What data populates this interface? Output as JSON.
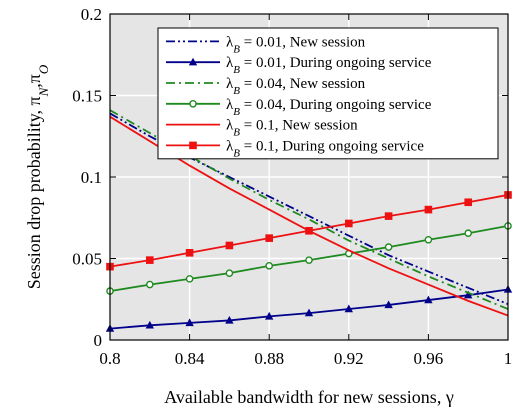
{
  "chart_data": {
    "type": "line",
    "xlabel": "Available bandwidth for new sessions, γ",
    "ylabel": "Session drop probability, π",
    "ylabel_subscripts": [
      "N",
      "O"
    ],
    "xlim": [
      0.8,
      1.0
    ],
    "ylim": [
      0,
      0.2
    ],
    "x_ticks": [
      0.8,
      0.84,
      0.88,
      0.92,
      0.96,
      1.0
    ],
    "x_tick_labels": [
      "0.8",
      "0.84",
      "0.88",
      "0.92",
      "0.96",
      "1"
    ],
    "y_ticks": [
      0,
      0.05,
      0.1,
      0.15,
      0.2
    ],
    "y_tick_labels": [
      "0",
      "0.05",
      "0.1",
      "0.15",
      "0.2"
    ],
    "grid": true,
    "background": "#e5e5e5",
    "legend_position": "top-right",
    "series": [
      {
        "name": "λ_B = 0.01, New session",
        "legend_symbol": "λ",
        "legend_subscript": "B",
        "legend_rest": " = 0.01, New session",
        "color": "#00008b",
        "dash": "dashdotdot",
        "marker": "none",
        "x": [
          0.8,
          0.82,
          0.84,
          0.86,
          0.88,
          0.9,
          0.92,
          0.94,
          0.96,
          0.98,
          1.0
        ],
        "y": [
          0.139,
          0.125,
          0.112,
          0.1,
          0.088,
          0.076,
          0.064,
          0.052,
          0.042,
          0.032,
          0.022
        ]
      },
      {
        "name": "λ_B = 0.01, During ongoing service",
        "legend_symbol": "λ",
        "legend_subscript": "B",
        "legend_rest": " = 0.01, During ongoing service",
        "color": "#00008b",
        "dash": "solid",
        "marker": "triangle",
        "x": [
          0.8,
          0.82,
          0.84,
          0.86,
          0.88,
          0.9,
          0.92,
          0.94,
          0.96,
          0.98,
          1.0
        ],
        "y": [
          0.007,
          0.009,
          0.0105,
          0.012,
          0.0145,
          0.0165,
          0.019,
          0.0215,
          0.0245,
          0.0275,
          0.031
        ]
      },
      {
        "name": "λ_B = 0.04, New session",
        "legend_symbol": "λ",
        "legend_subscript": "B",
        "legend_rest": " = 0.04, New session",
        "color": "#1f8a1f",
        "dash": "dashdot",
        "marker": "none",
        "x": [
          0.8,
          0.82,
          0.84,
          0.86,
          0.88,
          0.9,
          0.92,
          0.94,
          0.96,
          0.98,
          1.0
        ],
        "y": [
          0.141,
          0.127,
          0.113,
          0.099,
          0.086,
          0.074,
          0.061,
          0.05,
          0.039,
          0.029,
          0.019
        ]
      },
      {
        "name": "λ_B = 0.04, During ongoing service",
        "legend_symbol": "λ",
        "legend_subscript": "B",
        "legend_rest": " = 0.04, During ongoing service",
        "color": "#1f8a1f",
        "dash": "solid",
        "marker": "circle",
        "x": [
          0.8,
          0.82,
          0.84,
          0.86,
          0.88,
          0.9,
          0.92,
          0.94,
          0.96,
          0.98,
          1.0
        ],
        "y": [
          0.03,
          0.034,
          0.0375,
          0.041,
          0.0455,
          0.049,
          0.053,
          0.057,
          0.0615,
          0.0655,
          0.07
        ]
      },
      {
        "name": "λ_B = 0.1, New session",
        "legend_symbol": "λ",
        "legend_subscript": "B",
        "legend_rest": " = 0.1,   New session",
        "color": "#ee1111",
        "dash": "solid",
        "marker": "none",
        "x": [
          0.8,
          0.82,
          0.84,
          0.86,
          0.88,
          0.9,
          0.92,
          0.94,
          0.96,
          0.98,
          1.0
        ],
        "y": [
          0.137,
          0.122,
          0.107,
          0.093,
          0.08,
          0.067,
          0.055,
          0.044,
          0.034,
          0.024,
          0.015
        ]
      },
      {
        "name": "λ_B = 0.1, During ongoing service",
        "legend_symbol": "λ",
        "legend_subscript": "B",
        "legend_rest": " = 0.1,   During ongoing service",
        "color": "#ee1111",
        "dash": "solid",
        "marker": "square",
        "x": [
          0.8,
          0.82,
          0.84,
          0.86,
          0.88,
          0.9,
          0.92,
          0.94,
          0.96,
          0.98,
          1.0
        ],
        "y": [
          0.045,
          0.049,
          0.0535,
          0.058,
          0.0625,
          0.067,
          0.0715,
          0.076,
          0.08,
          0.0845,
          0.089
        ]
      }
    ]
  }
}
